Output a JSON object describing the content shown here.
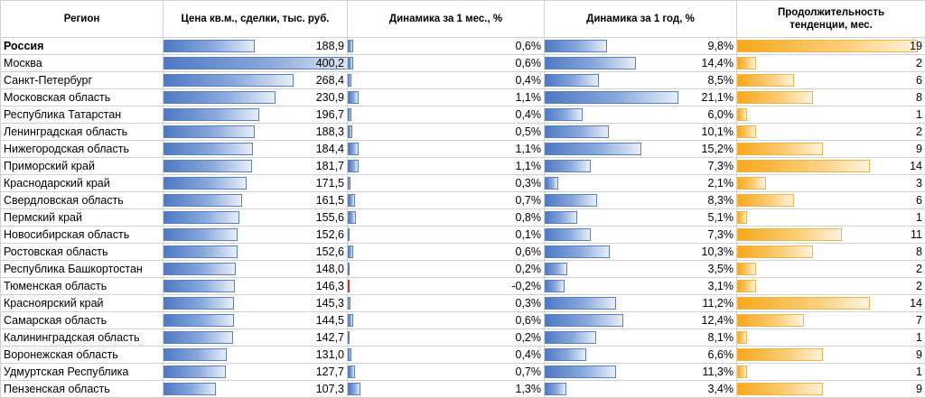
{
  "chart_data": {
    "type": "table",
    "headers": {
      "region": "Регион",
      "price": "Цена кв.м., сделки, тыс. руб.",
      "dyn_month": "Динамика за 1 мес., %",
      "dyn_year": "Динамика за 1 год, %",
      "duration": [
        "Продолжительность",
        "тенденции, мес."
      ]
    },
    "price_max": 400.2,
    "month_max": 1.3,
    "year_max": 21.1,
    "duration_max": 19,
    "colors": {
      "blue": "#5a80c4",
      "orange": "#f6a81a",
      "negative": "#e0302a"
    },
    "rows": [
      {
        "region": "Россия",
        "bold": true,
        "price": 188.9,
        "price_label": "188,9",
        "month": 0.6,
        "month_label": "0,6%",
        "year": 9.8,
        "year_label": "9,8%",
        "duration": 19,
        "duration_label": "19"
      },
      {
        "region": "Москва",
        "price": 400.2,
        "price_label": "400,2",
        "month": 0.6,
        "month_label": "0,6%",
        "year": 14.4,
        "year_label": "14,4%",
        "duration": 2,
        "duration_label": "2"
      },
      {
        "region": "Санкт-Петербург",
        "price": 268.4,
        "price_label": "268,4",
        "month": 0.4,
        "month_label": "0,4%",
        "year": 8.5,
        "year_label": "8,5%",
        "duration": 6,
        "duration_label": "6"
      },
      {
        "region": "Московская область",
        "price": 230.9,
        "price_label": "230,9",
        "month": 1.1,
        "month_label": "1,1%",
        "year": 21.1,
        "year_label": "21,1%",
        "duration": 8,
        "duration_label": "8"
      },
      {
        "region": "Республика Татарстан",
        "price": 196.7,
        "price_label": "196,7",
        "month": 0.4,
        "month_label": "0,4%",
        "year": 6.0,
        "year_label": "6,0%",
        "duration": 1,
        "duration_label": "1"
      },
      {
        "region": "Ленинградская область",
        "price": 188.3,
        "price_label": "188,3",
        "month": 0.5,
        "month_label": "0,5%",
        "year": 10.1,
        "year_label": "10,1%",
        "duration": 2,
        "duration_label": "2"
      },
      {
        "region": "Нижегородская область",
        "price": 184.4,
        "price_label": "184,4",
        "month": 1.1,
        "month_label": "1,1%",
        "year": 15.2,
        "year_label": "15,2%",
        "duration": 9,
        "duration_label": "9"
      },
      {
        "region": "Приморский край",
        "price": 181.7,
        "price_label": "181,7",
        "month": 1.1,
        "month_label": "1,1%",
        "year": 7.3,
        "year_label": "7,3%",
        "duration": 14,
        "duration_label": "14"
      },
      {
        "region": "Краснодарский край",
        "price": 171.5,
        "price_label": "171,5",
        "month": 0.3,
        "month_label": "0,3%",
        "year": 2.1,
        "year_label": "2,1%",
        "duration": 3,
        "duration_label": "3"
      },
      {
        "region": "Свердловская область",
        "price": 161.5,
        "price_label": "161,5",
        "month": 0.7,
        "month_label": "0,7%",
        "year": 8.3,
        "year_label": "8,3%",
        "duration": 6,
        "duration_label": "6"
      },
      {
        "region": "Пермский край",
        "price": 155.6,
        "price_label": "155,6",
        "month": 0.8,
        "month_label": "0,8%",
        "year": 5.1,
        "year_label": "5,1%",
        "duration": 1,
        "duration_label": "1"
      },
      {
        "region": "Новосибирская область",
        "price": 152.6,
        "price_label": "152,6",
        "month": 0.1,
        "month_label": "0,1%",
        "year": 7.3,
        "year_label": "7,3%",
        "duration": 11,
        "duration_label": "11"
      },
      {
        "region": "Ростовская область",
        "price": 152.6,
        "price_label": "152,6",
        "month": 0.6,
        "month_label": "0,6%",
        "year": 10.3,
        "year_label": "10,3%",
        "duration": 8,
        "duration_label": "8"
      },
      {
        "region": "Республика Башкортостан",
        "price": 148.0,
        "price_label": "148,0",
        "month": 0.2,
        "month_label": "0,2%",
        "year": 3.5,
        "year_label": "3,5%",
        "duration": 2,
        "duration_label": "2"
      },
      {
        "region": "Тюменская область",
        "price": 146.3,
        "price_label": "146,3",
        "month": -0.2,
        "month_label": "-0,2%",
        "year": 3.1,
        "year_label": "3,1%",
        "duration": 2,
        "duration_label": "2"
      },
      {
        "region": "Красноярский край",
        "price": 145.3,
        "price_label": "145,3",
        "month": 0.3,
        "month_label": "0,3%",
        "year": 11.2,
        "year_label": "11,2%",
        "duration": 14,
        "duration_label": "14"
      },
      {
        "region": "Самарская область",
        "price": 144.5,
        "price_label": "144,5",
        "month": 0.6,
        "month_label": "0,6%",
        "year": 12.4,
        "year_label": "12,4%",
        "duration": 7,
        "duration_label": "7"
      },
      {
        "region": "Калининградская область",
        "price": 142.7,
        "price_label": "142,7",
        "month": 0.2,
        "month_label": "0,2%",
        "year": 8.1,
        "year_label": "8,1%",
        "duration": 1,
        "duration_label": "1"
      },
      {
        "region": "Воронежская область",
        "price": 131.0,
        "price_label": "131,0",
        "month": 0.4,
        "month_label": "0,4%",
        "year": 6.6,
        "year_label": "6,6%",
        "duration": 9,
        "duration_label": "9"
      },
      {
        "region": "Удмуртская Республика",
        "price": 127.7,
        "price_label": "127,7",
        "month": 0.7,
        "month_label": "0,7%",
        "year": 11.3,
        "year_label": "11,3%",
        "duration": 1,
        "duration_label": "1"
      },
      {
        "region": "Пензенская область",
        "price": 107.3,
        "price_label": "107,3",
        "month": 1.3,
        "month_label": "1,3%",
        "year": 3.4,
        "year_label": "3,4%",
        "duration": 9,
        "duration_label": "9"
      }
    ]
  }
}
